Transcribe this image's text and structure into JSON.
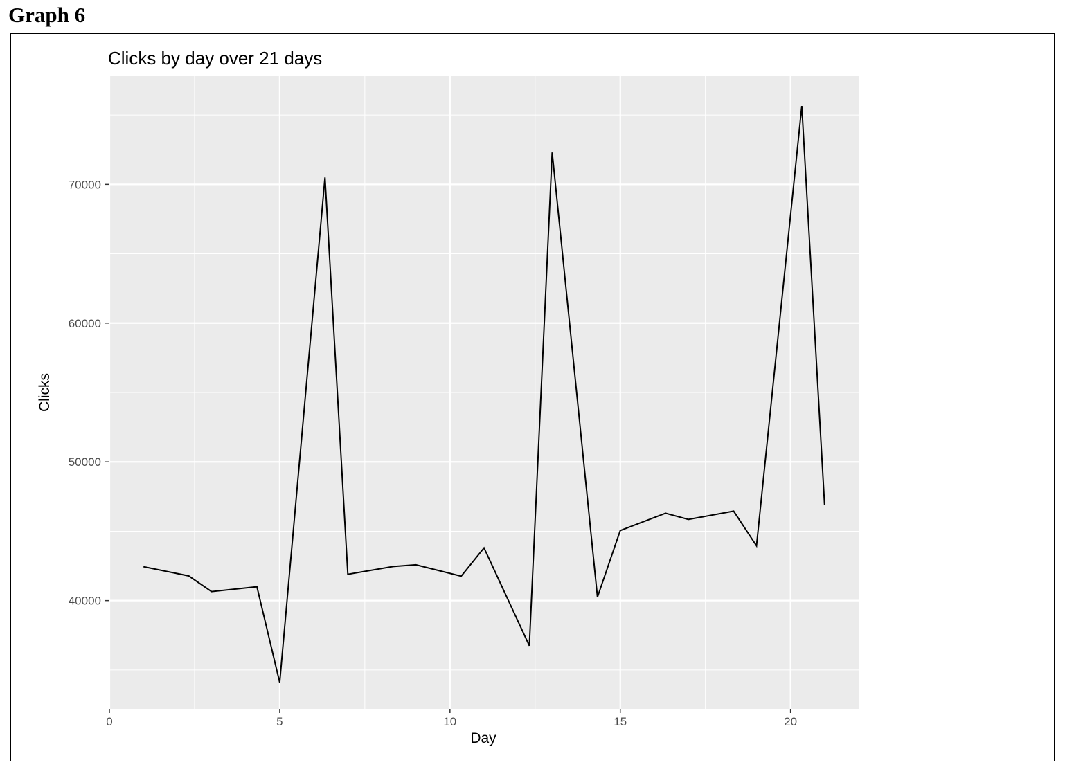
{
  "heading": "Graph 6",
  "chart_data": {
    "type": "line",
    "title": "Clicks by day over 21 days",
    "xlabel": "Day",
    "ylabel": "Clicks",
    "xlim": [
      0,
      22
    ],
    "ylim": [
      32200,
      77800
    ],
    "xticks": [
      0,
      5,
      10,
      15,
      20
    ],
    "yticks": [
      40000,
      50000,
      60000,
      70000
    ],
    "grid": true,
    "panel_background": "#ebebeb",
    "grid_color": "#ffffff",
    "line_color": "#000000",
    "series": [
      {
        "x": [
          1,
          2.33,
          3,
          4.33,
          5,
          6.33,
          7,
          8.33,
          9,
          10.33,
          11,
          12.33,
          13,
          14.33,
          15,
          16.33,
          17,
          18.33,
          19,
          20.33,
          21
        ],
        "values": [
          42450,
          41780,
          40650,
          41000,
          34100,
          70500,
          41900,
          42460,
          42580,
          41760,
          43800,
          36750,
          72300,
          40250,
          45050,
          46300,
          45850,
          46450,
          43950,
          75650,
          46900
        ]
      }
    ]
  }
}
